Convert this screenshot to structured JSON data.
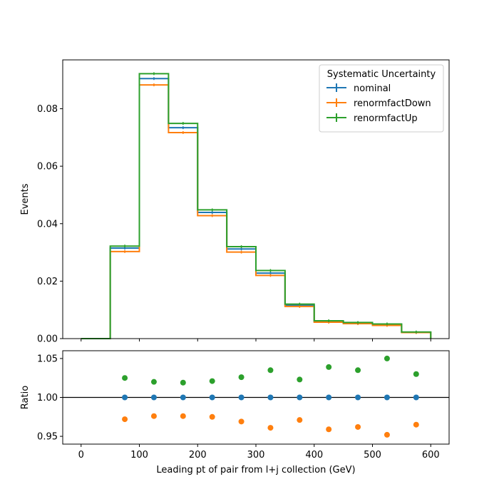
{
  "chart_data": [
    {
      "type": "step",
      "ylabel": "Events",
      "xlim": [
        -31.5,
        631.5
      ],
      "ylim": [
        0,
        0.097
      ],
      "bin_edges": [
        0,
        50,
        100,
        150,
        200,
        250,
        300,
        350,
        400,
        450,
        500,
        550,
        600
      ],
      "series": [
        {
          "name": "nominal",
          "color": "#1f77b4",
          "values": [
            0.0,
            0.0315,
            0.0905,
            0.0734,
            0.0439,
            0.0312,
            0.0228,
            0.0116,
            0.0059,
            0.0054,
            0.0049,
            0.0022
          ]
        },
        {
          "name": "renormfactDown",
          "color": "#ff7f0e",
          "values": [
            0.0,
            0.0303,
            0.0883,
            0.0717,
            0.0428,
            0.0301,
            0.022,
            0.0112,
            0.0057,
            0.0052,
            0.0046,
            0.0021
          ]
        },
        {
          "name": "renormfactUp",
          "color": "#2ca02c",
          "values": [
            0.0,
            0.0322,
            0.0922,
            0.0749,
            0.0448,
            0.032,
            0.0237,
            0.012,
            0.0062,
            0.0056,
            0.0051,
            0.0023
          ]
        }
      ],
      "yticks": [
        0.0,
        0.02,
        0.04,
        0.06,
        0.08
      ],
      "ytick_labels": [
        "0.00",
        "0.02",
        "0.04",
        "0.06",
        "0.08"
      ],
      "legend": {
        "title": "Systematic Uncertainty",
        "position": "upper right"
      }
    },
    {
      "type": "scatter",
      "xlabel": "Leading pt of pair from l+j collection (GeV)",
      "ylabel": "Ratio",
      "xlim": [
        -31.5,
        631.5
      ],
      "ylim": [
        0.94,
        1.06
      ],
      "reference_line": 1.0,
      "x": [
        75,
        125,
        175,
        225,
        275,
        325,
        375,
        425,
        475,
        525,
        575
      ],
      "series": [
        {
          "name": "nominal",
          "color": "#1f77b4",
          "values": [
            1.0,
            1.0,
            1.0,
            1.0,
            1.0,
            1.0,
            1.0,
            1.0,
            1.0,
            1.0,
            1.0
          ]
        },
        {
          "name": "renormfactDown",
          "color": "#ff7f0e",
          "values": [
            0.972,
            0.976,
            0.976,
            0.975,
            0.969,
            0.961,
            0.971,
            0.959,
            0.962,
            0.952,
            0.965
          ]
        },
        {
          "name": "renormfactUp",
          "color": "#2ca02c",
          "values": [
            1.025,
            1.02,
            1.019,
            1.021,
            1.026,
            1.035,
            1.023,
            1.039,
            1.035,
            1.05,
            1.03
          ]
        }
      ],
      "xticks": [
        0,
        100,
        200,
        300,
        400,
        500,
        600
      ],
      "xtick_labels": [
        "0",
        "100",
        "200",
        "300",
        "400",
        "500",
        "600"
      ],
      "yticks": [
        0.95,
        1.0,
        1.05
      ],
      "ytick_labels": [
        "0.95",
        "1.00",
        "1.05"
      ]
    }
  ]
}
